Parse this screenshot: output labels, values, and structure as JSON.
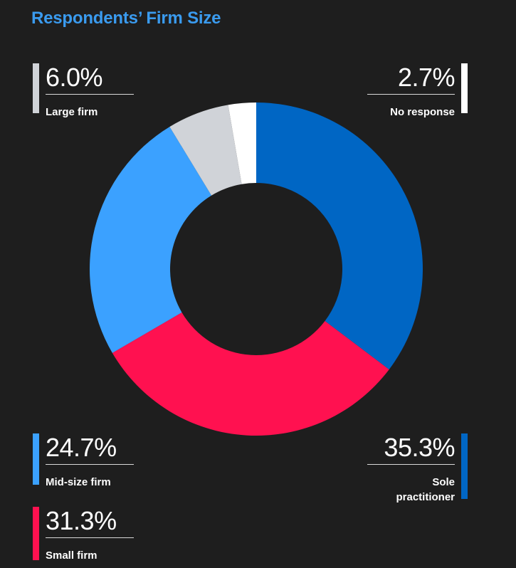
{
  "title": "Respondents’ Firm Size",
  "chart_data": {
    "type": "pie",
    "title": "Respondents’ Firm Size",
    "donut": true,
    "unit": "%",
    "slices": [
      {
        "label": "Sole practitioner",
        "value": 35.3,
        "display": "35.3%",
        "color": "#0066c4"
      },
      {
        "label": "Small firm",
        "value": 31.3,
        "display": "31.3%",
        "color": "#ff1150"
      },
      {
        "label": "Mid-size firm",
        "value": 24.7,
        "display": "24.7%",
        "color": "#3ba1ff"
      },
      {
        "label": "Large firm",
        "value": 6.0,
        "display": "6.0%",
        "color": "#d0d3d8"
      },
      {
        "label": "No response",
        "value": 2.7,
        "display": "2.7%",
        "color": "#ffffff"
      }
    ]
  },
  "callouts": {
    "large": {
      "pct": "6.0%",
      "label": "Large firm"
    },
    "none": {
      "pct": "2.7%",
      "label": "No response"
    },
    "mid": {
      "pct": "24.7%",
      "label": "Mid-size firm"
    },
    "sole": {
      "pct": "35.3%",
      "label_line1": "Sole",
      "label_line2": "practitioner"
    },
    "small": {
      "pct": "31.3%",
      "label": "Small firm"
    }
  }
}
